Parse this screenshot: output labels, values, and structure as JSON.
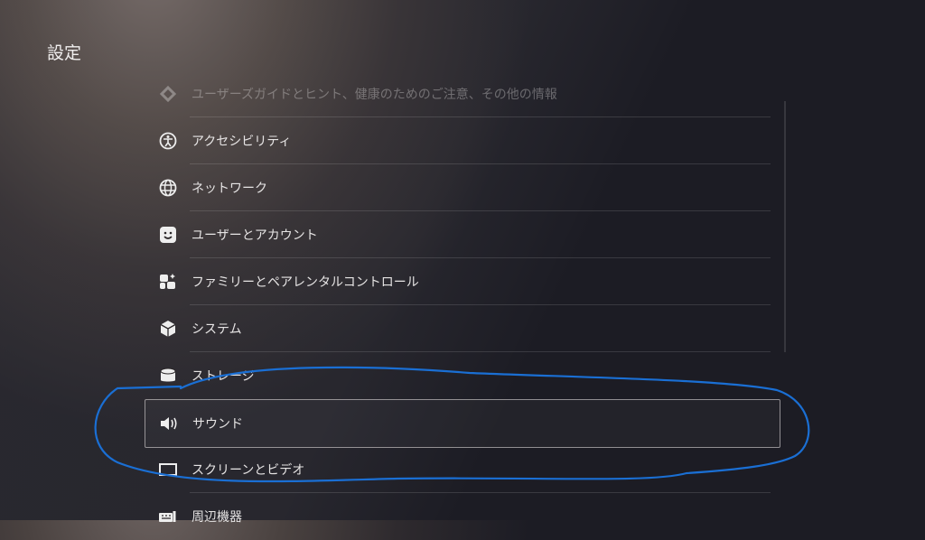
{
  "header": {
    "title": "設定"
  },
  "menu": {
    "items": [
      {
        "label": "ユーザーズガイドとヒント、健康のためのご注意、その他の情報",
        "icon": "info-icon"
      },
      {
        "label": "アクセシビリティ",
        "icon": "accessibility-icon"
      },
      {
        "label": "ネットワーク",
        "icon": "globe-icon"
      },
      {
        "label": "ユーザーとアカウント",
        "icon": "user-face-icon"
      },
      {
        "label": "ファミリーとペアレンタルコントロール",
        "icon": "family-icon"
      },
      {
        "label": "システム",
        "icon": "cube-icon"
      },
      {
        "label": "ストレージ",
        "icon": "storage-icon"
      },
      {
        "label": "サウンド",
        "icon": "speaker-icon",
        "selected": true
      },
      {
        "label": "スクリーンとビデオ",
        "icon": "screen-icon"
      },
      {
        "label": "周辺機器",
        "icon": "peripherals-icon"
      }
    ]
  },
  "annotation": {
    "color": "#1a6fd4"
  }
}
